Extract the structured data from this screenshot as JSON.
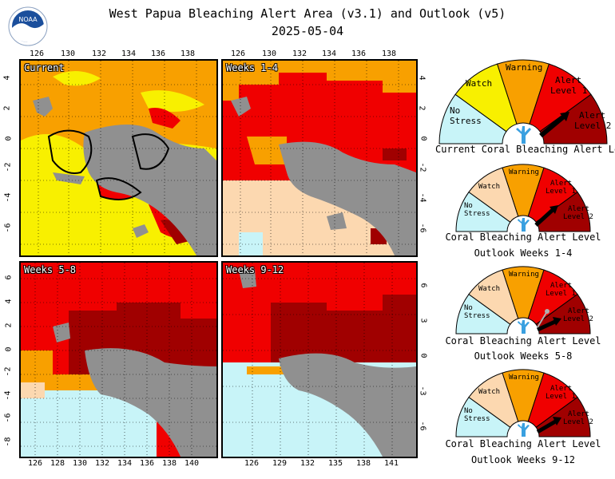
{
  "header": {
    "title": "West Papua Bleaching Alert Area (v3.1) and Outlook (v5)",
    "date": "2025-05-04",
    "logo_text": "NOAA"
  },
  "panels": [
    {
      "label": "Current",
      "xticks": [
        "126",
        "130",
        "132",
        "134",
        "136",
        "138"
      ],
      "yticks": [
        "4",
        "2",
        "0",
        "-2",
        "-4",
        "-6"
      ]
    },
    {
      "label": "Weeks 1-4",
      "xticks": [
        "126",
        "130",
        "132",
        "134",
        "136",
        "138"
      ],
      "yticks": [
        "4",
        "2",
        "0",
        "-2",
        "-4",
        "-6"
      ]
    },
    {
      "label": "Weeks 5-8",
      "xticks": [
        "126",
        "128",
        "130",
        "132",
        "134",
        "136",
        "138",
        "140"
      ],
      "yticks": [
        "6",
        "4",
        "2",
        "0",
        "-2",
        "-4",
        "-6",
        "-8"
      ]
    },
    {
      "label": "Weeks 9-12",
      "xticks": [
        "126",
        "129",
        "132",
        "135",
        "138",
        "141"
      ],
      "yticks": [
        "6",
        "3",
        "0",
        "-3",
        "-6"
      ]
    }
  ],
  "gauges": [
    {
      "caption": "Current Coral Bleaching Alert Level",
      "subcaption": "",
      "needle_level": "Alert Level 1"
    },
    {
      "caption": "Coral Bleaching Alert Level",
      "subcaption": "Outlook Weeks 1-4",
      "needle_level": "Alert Level 1"
    },
    {
      "caption": "Coral Bleaching Alert Level",
      "subcaption": "Outlook Weeks 5-8",
      "needle_level": "Alert Level 2"
    },
    {
      "caption": "Coral Bleaching Alert Level",
      "subcaption": "Outlook Weeks 9-12",
      "needle_level": "Alert Level 2"
    }
  ],
  "gauge_labels": {
    "no_stress_1": "No",
    "no_stress_2": "Stress",
    "watch": "Watch",
    "warning": "Warning",
    "alert1_1": "Alert",
    "alert1_2": "Level 1",
    "alert2_1": "Alert",
    "alert2_2": "Level 2"
  },
  "colors": {
    "no_stress": "#c8f4f8",
    "watch": "#f8f000",
    "warning": "#f8a000",
    "alert1": "#f00000",
    "alert2": "#a00000",
    "land": "#909090",
    "watch_outlook": "#fcd8b0",
    "bleach_outline": "#000000",
    "coral_icon": "#3aa0e0"
  }
}
